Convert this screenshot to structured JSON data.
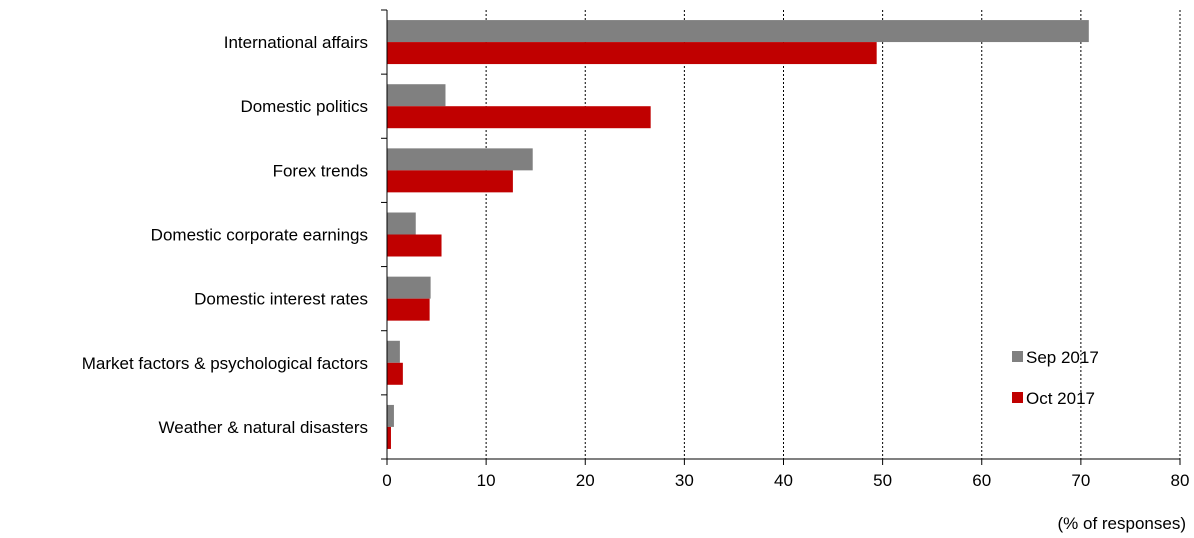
{
  "chart_data": {
    "type": "bar",
    "orientation": "horizontal",
    "categories": [
      "International affairs",
      "Domestic politics",
      "Forex trends",
      "Domestic corporate earnings",
      "Domestic interest rates",
      "Market factors & psychological factors",
      "Weather & natural disasters"
    ],
    "series": [
      {
        "name": "Sep 2017",
        "color": "#808080",
        "values": [
          70.8,
          5.9,
          14.7,
          2.9,
          4.4,
          1.3,
          0.7
        ]
      },
      {
        "name": "Oct 2017",
        "color": "#c00000",
        "values": [
          49.4,
          26.6,
          12.7,
          5.5,
          4.3,
          1.6,
          0.4
        ]
      }
    ],
    "xlim": [
      0,
      80
    ],
    "xticks": [
      0,
      10,
      20,
      30,
      40,
      50,
      60,
      70,
      80
    ],
    "xlabel": "(% of responses)",
    "grid": "vertical dotted",
    "legend": "bottom-right"
  }
}
